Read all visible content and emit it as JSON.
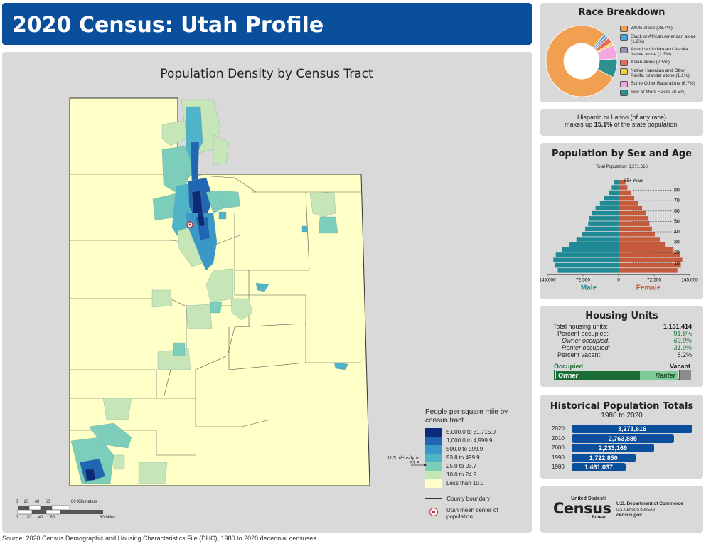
{
  "title": "2020 Census: Utah Profile",
  "map": {
    "title": "Population Density by Census Tract",
    "legend_title": "People per square mile by census tract",
    "classes": [
      {
        "label": "5,000.0 to 31,715.0",
        "color": "#0b2a78"
      },
      {
        "label": "1,000.0 to 4,999.9",
        "color": "#2166b3"
      },
      {
        "label": "500.0 to 999.9",
        "color": "#3a98c8"
      },
      {
        "label": "93.8 to 499.9",
        "color": "#4fb4c8"
      },
      {
        "label": "25.0 to 93.7",
        "color": "#7ccdba"
      },
      {
        "label": "10.0 to 24.9",
        "color": "#c6e6b8"
      },
      {
        "label": "Less than 10.0",
        "color": "#ffffc8"
      }
    ],
    "us_density_note": "U.S. density is 93.8",
    "county_boundary_label": "County boundary",
    "mean_center_label": "Utah mean center of population",
    "scale_km_label": "80 Kilometers",
    "scale_mi_label": "80 Miles",
    "scale_ticks_km": [
      "0",
      "20",
      "40",
      "60"
    ],
    "scale_ticks_mi": [
      "0",
      "20",
      "40",
      "60"
    ]
  },
  "source": "Source: 2020 Census Demographic and Housing Characteristics File (DHC), 1980 to 2020 decennial censuses",
  "race": {
    "title": "Race Breakdown",
    "items": [
      {
        "label": "White alone (78.7%)",
        "value": 78.7,
        "color": "#f0a050"
      },
      {
        "label": "Black or African American alone (1.2%)",
        "value": 1.2,
        "color": "#3fa7e0"
      },
      {
        "label": "American Indian and Alaska Native alone (1.3%)",
        "value": 1.3,
        "color": "#9b8fb0"
      },
      {
        "label": "Asian alone (2.5%)",
        "value": 2.5,
        "color": "#e86a5a"
      },
      {
        "label": "Native Hawaiian and Other Pacific Islander alone (1.1%)",
        "value": 1.1,
        "color": "#f2cf3a"
      },
      {
        "label": "Some Other Race alone (6.7%)",
        "value": 6.7,
        "color": "#f4a6e0"
      },
      {
        "label": "Two or More Races (8.5%)",
        "value": 8.5,
        "color": "#2f8f8f"
      }
    ]
  },
  "hispanic": {
    "line1": "Hispanic or Latino (of any race)",
    "line2_pre": "makes up",
    "line2_bold": "15.1%",
    "line2_post": "of the state population."
  },
  "pyramid": {
    "title": "Population by Sex and Age",
    "total": "Total Population: 3,271,616",
    "top_label": "85+ Years",
    "age_labels": [
      "80",
      "70",
      "60",
      "50",
      "40",
      "30",
      "20",
      "10"
    ],
    "axis_ticks": [
      "145,000",
      "72,500",
      "0",
      "72,500",
      "145,000"
    ],
    "male_label": "Male",
    "female_label": "Female",
    "male_color": "#1f8a96",
    "female_color": "#c65a3c",
    "male": [
      10000,
      14000,
      20000,
      29000,
      38000,
      47000,
      55000,
      60000,
      62000,
      68000,
      75000,
      86000,
      100000,
      116000,
      128000,
      133000,
      130000,
      124000
    ],
    "female": [
      14000,
      18000,
      25000,
      32000,
      40000,
      48000,
      56000,
      61000,
      63000,
      68000,
      74000,
      84000,
      96000,
      112000,
      125000,
      130000,
      127000,
      120000
    ]
  },
  "housing": {
    "title": "Housing Units",
    "rows": [
      {
        "label": "Total housing units:",
        "value": "1,151,414",
        "italic": false,
        "bold": true,
        "green": false
      },
      {
        "label": "Percent occupied:",
        "value": "91.8%",
        "italic": false,
        "bold": false,
        "green": true
      },
      {
        "label": "Owner occupied:",
        "value": "69.0%",
        "italic": true,
        "bold": false,
        "green": true
      },
      {
        "label": "Renter occupied:",
        "value": "31.0%",
        "italic": true,
        "bold": false,
        "green": true
      },
      {
        "label": "Percent vacant:",
        "value": "8.2%",
        "italic": false,
        "bold": false,
        "green": false
      }
    ],
    "occupied_label": "Occupied",
    "vacant_label": "Vacant",
    "owner_label": "Owner",
    "renter_label": "Renter",
    "occupied_pct": 91.8,
    "owner_pct": 69.0
  },
  "history": {
    "title": "Historical Population Totals",
    "subtitle": "1980 to 2020",
    "rows": [
      {
        "year": "2020",
        "value": 3271616,
        "label": "3,271,616"
      },
      {
        "year": "2010",
        "value": 2763885,
        "label": "2,763,885"
      },
      {
        "year": "2000",
        "value": 2233169,
        "label": "2,233,169"
      },
      {
        "year": "1990",
        "value": 1722850,
        "label": "1,722,850"
      },
      {
        "year": "1980",
        "value": 1461037,
        "label": "1,461,037"
      }
    ]
  },
  "logo": {
    "line1": "United States®",
    "line2": "Census",
    "line3": "Bureau",
    "dept1": "U.S. Department of Commerce",
    "dept2": "U.S. CENSUS BUREAU",
    "dept3": "census.gov"
  }
}
